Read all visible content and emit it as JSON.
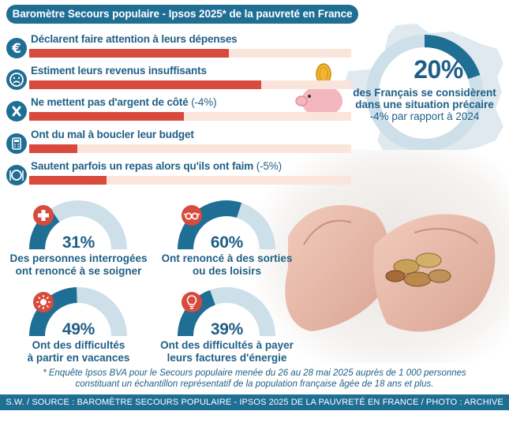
{
  "header": {
    "title": "Baromètre Secours populaire - Ipsos 2025* de la pauvreté en France"
  },
  "chart_data": [
    {
      "type": "bar",
      "orientation": "horizontal",
      "ylim": [
        0,
        100
      ],
      "categories": [
        "Déclarent faire attention à leurs dépenses",
        "Estiment leurs revenus insuffisants",
        "Ne mettent pas d'argent de côté",
        "Ont du mal à boucler leur budget",
        "Sautent parfois un repas alors qu'ils ont faim"
      ],
      "notes": [
        "",
        "",
        "(-4%)",
        "",
        "(-5%)"
      ],
      "values": [
        62,
        72,
        48,
        15,
        24
      ],
      "value_labels": [
        "62%",
        "72%",
        "48%",
        "15%",
        "24%"
      ],
      "icons": [
        "euro-icon",
        "sad-face-icon",
        "cross-icon",
        "calculator-icon",
        "plate-icon"
      ]
    },
    {
      "type": "gauge",
      "items": [
        {
          "value": 31,
          "label": "31%",
          "text1": "Des personnes interrogées",
          "text2": "ont renoncé à se soigner",
          "icon": "medical-cross-icon"
        },
        {
          "value": 60,
          "label": "60%",
          "text1": "Ont renoncé à des sorties",
          "text2": "ou des loisirs",
          "icon": "glasses-icon"
        },
        {
          "value": 49,
          "label": "49%",
          "text1": "Ont des difficultés",
          "text2": "à partir en vacances",
          "icon": "sun-icon"
        },
        {
          "value": 39,
          "label": "39%",
          "text1": "Ont des difficultés à payer",
          "text2": "leurs factures d'énergie",
          "icon": "lightbulb-icon"
        }
      ]
    }
  ],
  "highlight": {
    "value": "20%",
    "text1": "des Français se considèrent",
    "text2": "dans une situation précaire",
    "text3": "-4% par rapport à 2024"
  },
  "footnote": {
    "line1": "* Enquête Ipsos BVA pour le Secours populaire menée du 26 au 28 mai 2025 auprès de 1 000 personnes",
    "line2": "constituant un échantillon représentatif de la population française âgée de 18 ans et plus."
  },
  "footer": {
    "credits": "S.W. / SOURCE : BAROMÈTRE  SECOURS POPULAIRE - IPSOS 2025 DE LA PAUVRETÉ EN FRANCE / PHOTO : ARCHIVE MIDI LIBRE"
  },
  "colors": {
    "blue": "#1f6e94",
    "red": "#d84a3c",
    "track": "#fbe4dc",
    "gauge_track": "#cddfe9"
  }
}
